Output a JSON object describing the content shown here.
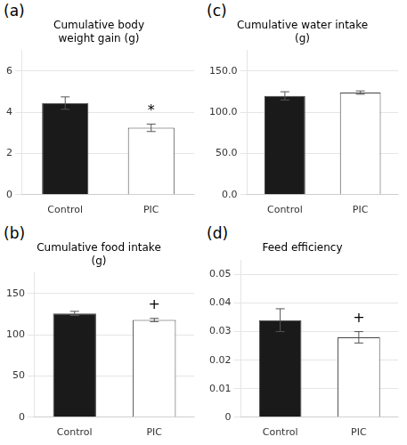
{
  "chart_data": [
    {
      "type": "bar",
      "panel_label": "(a)",
      "title": "Cumulative body\nweight gain (g)",
      "categories": [
        "Control",
        "PIC"
      ],
      "values": [
        4.45,
        3.25
      ],
      "errors": [
        0.3,
        0.18
      ],
      "colors": [
        "#1a1a1a",
        "#ffffff"
      ],
      "significance": [
        null,
        "*"
      ],
      "ylim": [
        0,
        7
      ],
      "yticks": [
        0,
        2,
        4,
        6
      ],
      "grid": true
    },
    {
      "type": "bar",
      "panel_label": "(c)",
      "title": "Cumulative water intake\n(g)",
      "categories": [
        "Control",
        "PIC"
      ],
      "values": [
        120.0,
        124.0
      ],
      "errors": [
        5.0,
        2.0
      ],
      "colors": [
        "#1a1a1a",
        "#ffffff"
      ],
      "significance": [
        null,
        null
      ],
      "ylim": [
        0,
        175
      ],
      "yticks": [
        {
          "value": 0,
          "label": "0.0"
        },
        {
          "value": 50,
          "label": "50.0"
        },
        {
          "value": 100,
          "label": "100.0"
        },
        {
          "value": 150,
          "label": "150.0"
        }
      ],
      "grid": true
    },
    {
      "type": "bar",
      "panel_label": "(b)",
      "title": "Cumulative food intake\n(g)",
      "categories": [
        "Control",
        "PIC"
      ],
      "values": [
        126.0,
        118.0
      ],
      "errors": [
        2.5,
        2.0
      ],
      "colors": [
        "#1a1a1a",
        "#ffffff"
      ],
      "significance": [
        null,
        "+"
      ],
      "ylim": [
        0,
        175
      ],
      "yticks": [
        0,
        50,
        100,
        150
      ],
      "grid": true
    },
    {
      "type": "bar",
      "panel_label": "(d)",
      "title": "Feed efficiency",
      "categories": [
        "Control",
        "PIC"
      ],
      "values": [
        0.034,
        0.028
      ],
      "errors": [
        0.004,
        0.002
      ],
      "colors": [
        "#1a1a1a",
        "#ffffff"
      ],
      "significance": [
        null,
        "+"
      ],
      "ylim": [
        0,
        0.055
      ],
      "yticks": [
        0,
        0.01,
        0.02,
        0.03,
        0.04,
        0.05
      ],
      "grid": true
    }
  ]
}
